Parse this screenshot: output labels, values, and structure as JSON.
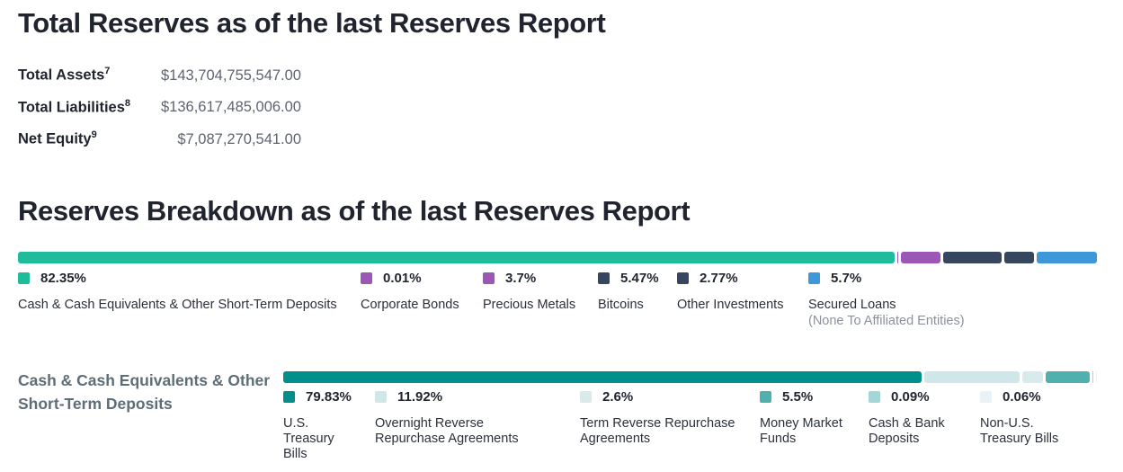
{
  "total_reserves": {
    "title": "Total Reserves as of the last Reserves Report",
    "rows": [
      {
        "label": "Total Assets",
        "sup": "7",
        "value": "$143,704,755,547.00"
      },
      {
        "label": "Total Liabilities",
        "sup": "8",
        "value": "$136,617,485,006.00"
      },
      {
        "label": "Net Equity",
        "sup": "9",
        "value": "$7,087,270,541.00"
      }
    ]
  },
  "breakdown": {
    "title": "Reserves Breakdown as of the last Reserves Report",
    "cash_section_label": "Cash & Cash Equivalents & Other Short-Term Deposits"
  },
  "colors": {
    "heading": "#20242e",
    "value_text": "#5d6470",
    "muted_text": "#8b919c",
    "section_label_text": "#5e6e77"
  },
  "chart_data": [
    {
      "type": "bar",
      "stacked": true,
      "unit": "%",
      "title": "Reserves Breakdown as of the last Reserves Report",
      "legend_position": "bottom",
      "series": [
        {
          "name": "Cash & Cash Equivalents & Other Short-Term Deposits",
          "value": 82.35,
          "pct_label": "82.35%",
          "color": "#1ebc9a"
        },
        {
          "name": "Corporate Bonds",
          "value": 0.01,
          "pct_label": "0.01%",
          "color": "#9c56b5"
        },
        {
          "name": "Precious Metals",
          "value": 3.7,
          "pct_label": "3.7%",
          "color": "#9c56b5"
        },
        {
          "name": "Bitcoins",
          "value": 5.47,
          "pct_label": "5.47%",
          "color": "#35465e"
        },
        {
          "name": "Other Investments",
          "value": 2.77,
          "pct_label": "2.77%",
          "color": "#35465e"
        },
        {
          "name": "Secured Loans",
          "value": 5.7,
          "pct_label": "5.7%",
          "color": "#3e97d9",
          "note": "(None To Affiliated Entities)"
        }
      ]
    },
    {
      "type": "bar",
      "stacked": true,
      "unit": "%",
      "title": "Cash & Cash Equivalents & Other Short-Term Deposits",
      "legend_position": "bottom",
      "series": [
        {
          "name": "U.S. Treasury Bills",
          "value": 79.83,
          "pct_label": "79.83%",
          "color": "#008f8b"
        },
        {
          "name": "Overnight Reverse Repurchase Agreements",
          "value": 11.92,
          "pct_label": "11.92%",
          "color": "#cfe7e9"
        },
        {
          "name": "Term Reverse Repurchase Agreements",
          "value": 2.6,
          "pct_label": "2.6%",
          "color": "#d7eaec"
        },
        {
          "name": "Money Market Funds",
          "value": 5.5,
          "pct_label": "5.5%",
          "color": "#4fb0ad"
        },
        {
          "name": "Cash & Bank Deposits",
          "value": 0.09,
          "pct_label": "0.09%",
          "color": "#a3d6d6"
        },
        {
          "name": "Non-U.S. Treasury Bills",
          "value": 0.06,
          "pct_label": "0.06%",
          "color": "#e9f3f7"
        }
      ]
    }
  ]
}
